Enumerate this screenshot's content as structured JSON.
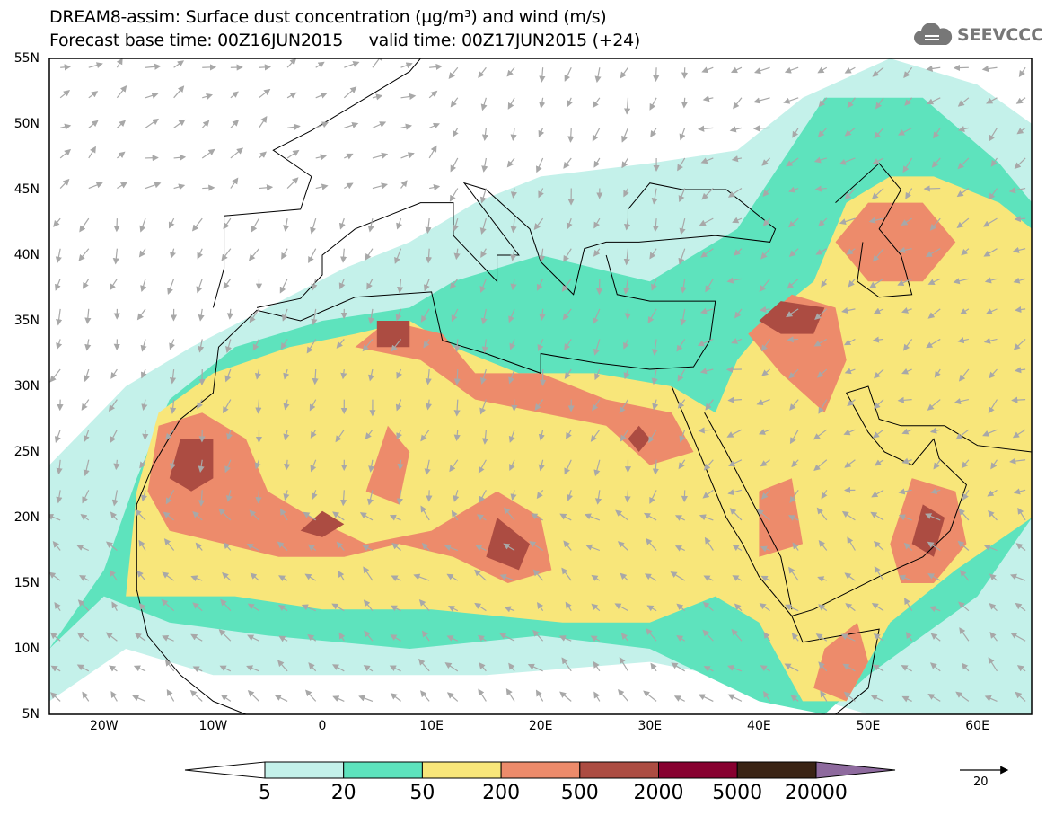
{
  "header": {
    "title_line1": "DREAM8-assim: Surface dust concentration (µg/m³) and wind (m/s)",
    "title_line2": "Forecast base time: 00Z16JUN2015     valid time: 00Z17JUN2015 (+24)",
    "logo_text": "SEEVCCC"
  },
  "map": {
    "lon_range": [
      -25,
      65
    ],
    "lat_range": [
      5,
      55
    ],
    "lat_labels": [
      "55N",
      "50N",
      "45N",
      "40N",
      "35N",
      "30N",
      "25N",
      "20N",
      "15N",
      "10N",
      "5N"
    ],
    "lon_labels": [
      "20W",
      "10W",
      "0",
      "10E",
      "20E",
      "30E",
      "40E",
      "50E",
      "60E"
    ]
  },
  "legend": {
    "labels": [
      "5",
      "20",
      "50",
      "200",
      "500",
      "2000",
      "5000",
      "20000"
    ],
    "colors": [
      "#ffffff",
      "#c4f1ea",
      "#5ee3bd",
      "#f8e67a",
      "#ed8b6b",
      "#ac4c42",
      "#870030",
      "#3a2415",
      "#8e6a9e"
    ],
    "wind_ref_label": "20"
  }
}
